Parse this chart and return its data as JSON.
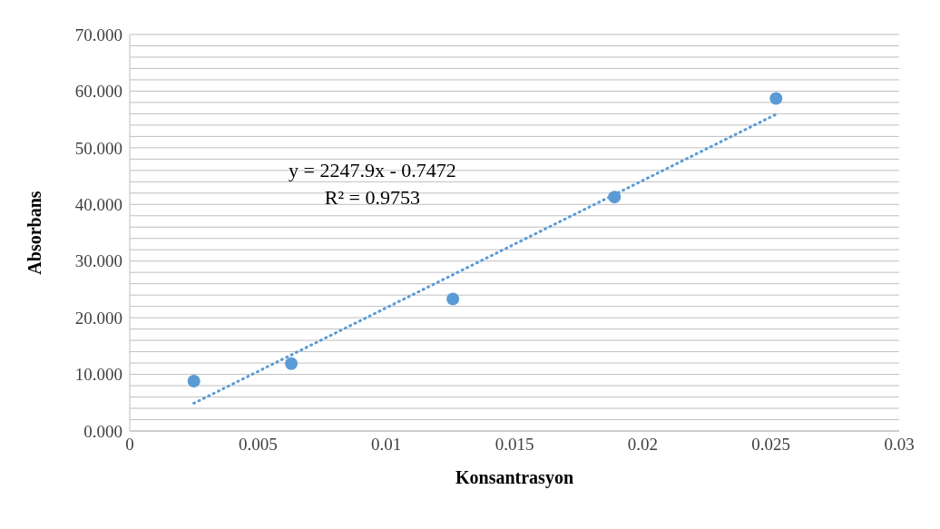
{
  "chart_data": {
    "type": "scatter",
    "xlabel": "Konsantrasyon",
    "ylabel": "Absorbans",
    "annotations": [
      "y = 2247.9x - 0.7472",
      "R² = 0.9753"
    ],
    "series": [
      {
        "color": "#5b9bd5",
        "marker": "circle",
        "x": [
          0.0025,
          0.0063,
          0.0126,
          0.0189,
          0.0252
        ],
        "values": [
          8.8,
          11.9,
          23.3,
          41.3,
          58.7
        ]
      },
      {
        "type": "line",
        "color": "#5b9bd5",
        "line_style": "dotted",
        "marker": "none",
        "x": [
          0.0025,
          0.0252
        ],
        "values": [
          4.9,
          55.9
        ]
      }
    ],
    "xlim": [
      0,
      0.03
    ],
    "xticks": [
      0,
      0.005,
      0.01,
      0.015,
      0.02,
      0.025,
      0.03
    ],
    "ylim": [
      0,
      70
    ],
    "yticks": [
      {
        "value": 0,
        "label": "0.000"
      },
      {
        "value": 2,
        "label": null
      },
      {
        "value": 4,
        "label": null
      },
      {
        "value": 6,
        "label": null
      },
      {
        "value": 8,
        "label": null
      },
      {
        "value": 10,
        "label": "10.000"
      },
      {
        "value": 12,
        "label": null
      },
      {
        "value": 14,
        "label": null
      },
      {
        "value": 16,
        "label": null
      },
      {
        "value": 18,
        "label": null
      },
      {
        "value": 20,
        "label": "20.000"
      },
      {
        "value": 22,
        "label": null
      },
      {
        "value": 24,
        "label": null
      },
      {
        "value": 26,
        "label": null
      },
      {
        "value": 28,
        "label": null
      },
      {
        "value": 30,
        "label": "30.000"
      },
      {
        "value": 32,
        "label": null
      },
      {
        "value": 34,
        "label": null
      },
      {
        "value": 36,
        "label": null
      },
      {
        "value": 38,
        "label": null
      },
      {
        "value": 40,
        "label": "40.000"
      },
      {
        "value": 42,
        "label": null
      },
      {
        "value": 44,
        "label": null
      },
      {
        "value": 46,
        "label": null
      },
      {
        "value": 48,
        "label": null
      },
      {
        "value": 50,
        "label": "50.000"
      },
      {
        "value": 52,
        "label": null
      },
      {
        "value": 54,
        "label": null
      },
      {
        "value": 56,
        "label": null
      },
      {
        "value": 58,
        "label": null
      },
      {
        "value": 60,
        "label": "60.000"
      },
      {
        "value": 62,
        "label": null
      },
      {
        "value": 64,
        "label": null
      },
      {
        "value": 66,
        "label": null
      },
      {
        "value": 68,
        "label": null
      },
      {
        "value": 70,
        "label": "70.000"
      }
    ],
    "grid": "y"
  }
}
